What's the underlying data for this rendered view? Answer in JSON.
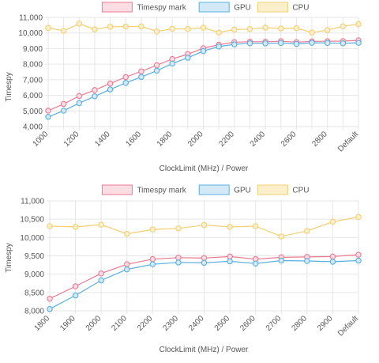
{
  "chart_data": [
    {
      "type": "line",
      "title": "",
      "xlabel": "ClockLimit (MHz) / Power",
      "ylabel": "Timespy",
      "ylim": [
        4000,
        11000
      ],
      "yticks": [
        "4,000",
        "5,000",
        "6,000",
        "7,000",
        "8,000",
        "9,000",
        "10,000",
        "11,000"
      ],
      "ytick_values": [
        4000,
        5000,
        6000,
        7000,
        8000,
        9000,
        10000,
        11000
      ],
      "xtick_labels": [
        "1000",
        "1200",
        "1400",
        "1600",
        "1800",
        "2000",
        "2200",
        "2400",
        "2600",
        "2800",
        "Default"
      ],
      "categories": [
        "1000",
        "1100",
        "1200",
        "1300",
        "1400",
        "1500",
        "1600",
        "1700",
        "1800",
        "1900",
        "2000",
        "2100",
        "2200",
        "2300",
        "2400",
        "2500",
        "2600",
        "2700",
        "2800",
        "2900",
        "Default"
      ],
      "legend_position": "top",
      "grid": true,
      "series": [
        {
          "name": "Timespy mark",
          "color": "#ea7a93",
          "fill": "#fddde4",
          "values": [
            5020,
            5450,
            5960,
            6340,
            6760,
            7170,
            7540,
            7930,
            8330,
            8640,
            9020,
            9250,
            9410,
            9440,
            9440,
            9470,
            9410,
            9460,
            9470,
            9480,
            9530
          ]
        },
        {
          "name": "GPU",
          "color": "#5aaee0",
          "fill": "#d4e9f8",
          "values": [
            4620,
            5020,
            5500,
            5940,
            6380,
            6800,
            7180,
            7580,
            8040,
            8410,
            8840,
            9130,
            9270,
            9340,
            9330,
            9360,
            9300,
            9370,
            9360,
            9340,
            9370
          ]
        },
        {
          "name": "CPU",
          "color": "#f2cf73",
          "fill": "#fcf0cc",
          "values": [
            10320,
            10140,
            10600,
            10230,
            10400,
            10410,
            10420,
            10100,
            10270,
            10260,
            10340,
            10030,
            10220,
            10250,
            10340,
            10290,
            10310,
            10030,
            10180,
            10430,
            10560
          ]
        }
      ]
    },
    {
      "type": "line",
      "title": "",
      "xlabel": "ClockLimit (MHz) / Power",
      "ylabel": "Timespy",
      "ylim": [
        8000,
        11000
      ],
      "yticks": [
        "8,000",
        "8,500",
        "9,000",
        "9,500",
        "10,000",
        "10,500",
        "11,000"
      ],
      "ytick_values": [
        8000,
        8500,
        9000,
        9500,
        10000,
        10500,
        11000
      ],
      "xtick_labels": [
        "1800",
        "1900",
        "2000",
        "2100",
        "2200",
        "2300",
        "2400",
        "2500",
        "2600",
        "2700",
        "2800",
        "2900",
        "Default"
      ],
      "categories": [
        "1800",
        "1900",
        "2000",
        "2100",
        "2200",
        "2300",
        "2400",
        "2500",
        "2600",
        "2700",
        "2800",
        "2900",
        "Default"
      ],
      "legend_position": "top",
      "grid": true,
      "series": [
        {
          "name": "Timespy mark",
          "color": "#ea7a93",
          "fill": "#fddde4",
          "values": [
            8330,
            8670,
            9020,
            9270,
            9410,
            9450,
            9440,
            9480,
            9410,
            9460,
            9470,
            9480,
            9530
          ]
        },
        {
          "name": "GPU",
          "color": "#5aaee0",
          "fill": "#d4e9f8",
          "values": [
            8050,
            8420,
            8830,
            9130,
            9270,
            9320,
            9310,
            9350,
            9290,
            9370,
            9360,
            9340,
            9370
          ]
        },
        {
          "name": "CPU",
          "color": "#f2cf73",
          "fill": "#fcf0cc",
          "values": [
            10310,
            10290,
            10350,
            10100,
            10220,
            10250,
            10340,
            10290,
            10310,
            10030,
            10180,
            10430,
            10560
          ]
        }
      ]
    }
  ]
}
